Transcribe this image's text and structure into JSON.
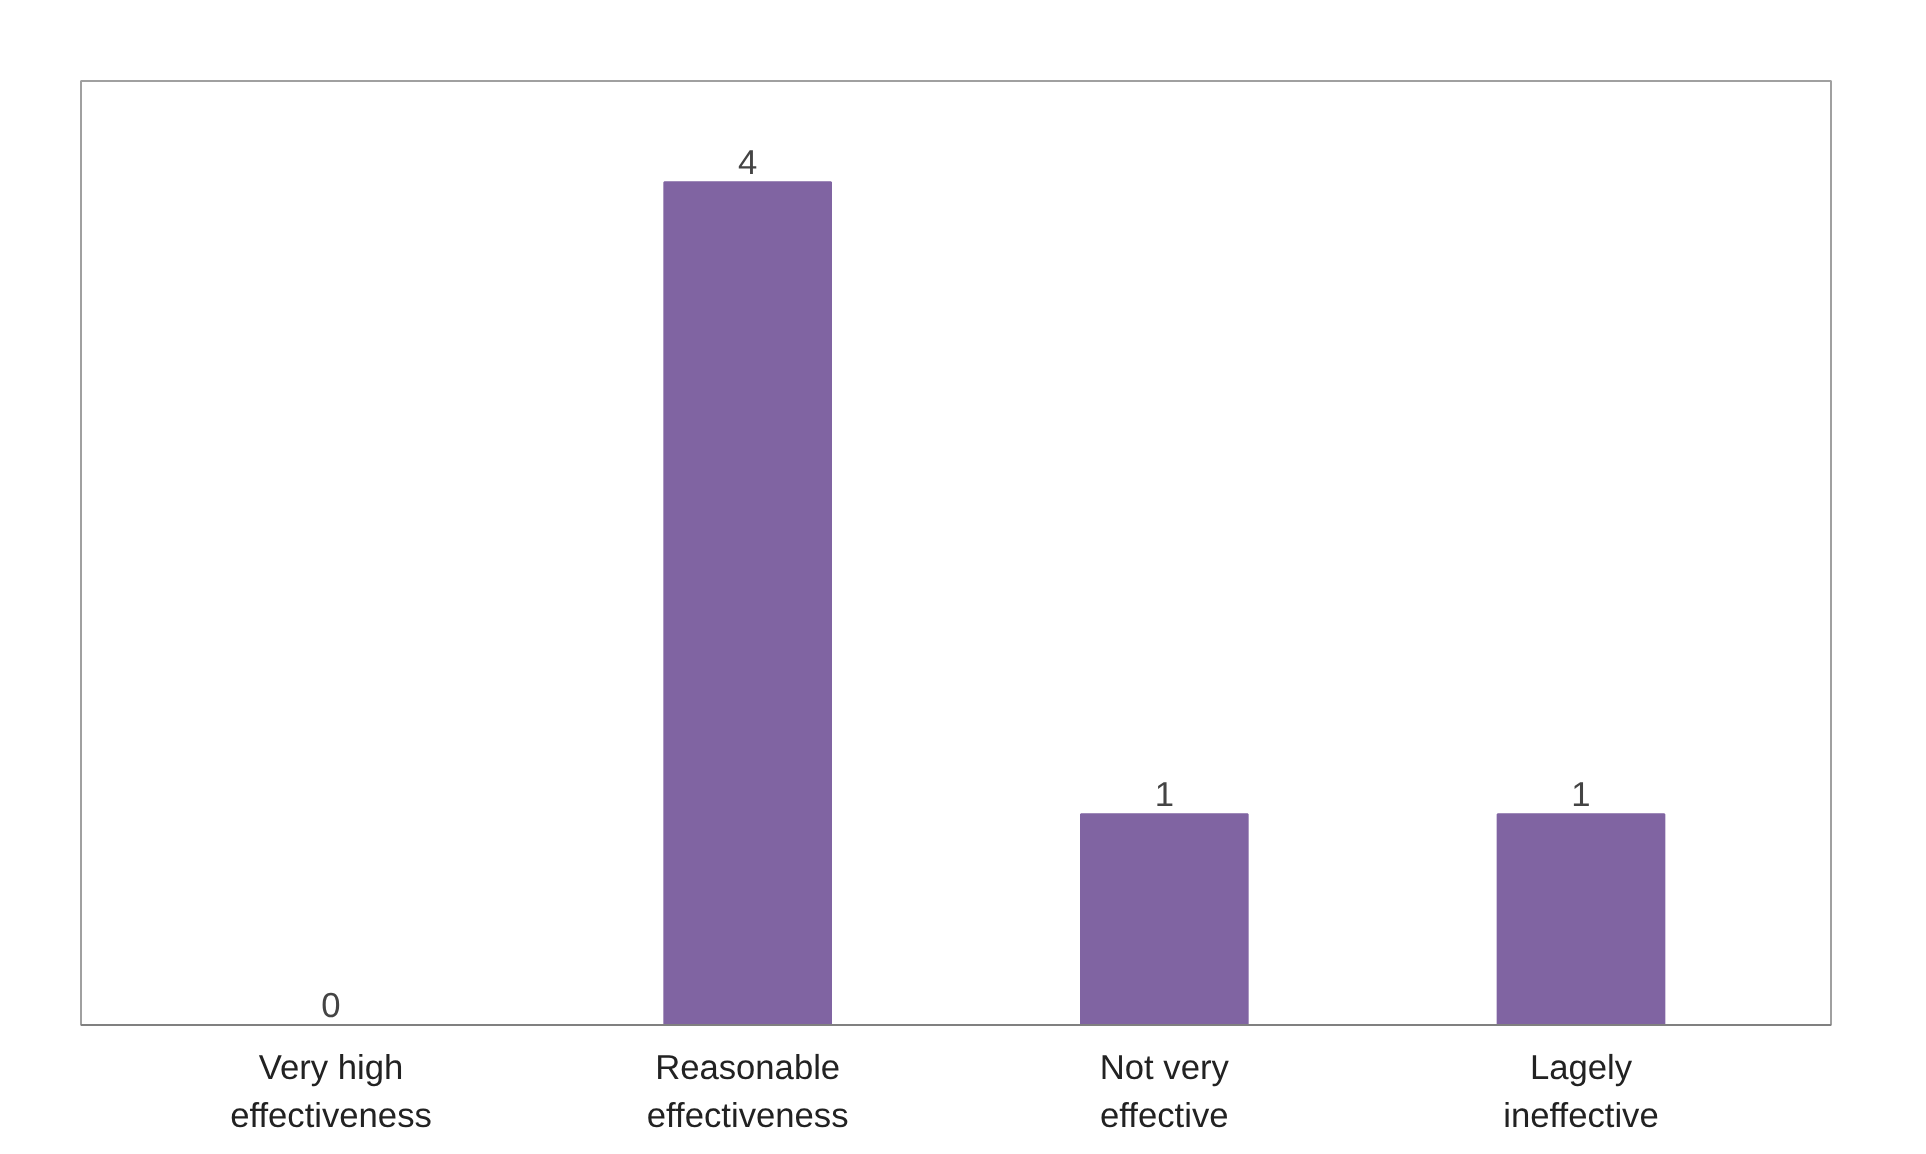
{
  "chart_data": {
    "type": "bar",
    "categories": [
      "Very high effectiveness",
      "Reasonable effectiveness",
      "Not very effective",
      "Lagely ineffective"
    ],
    "values": [
      0,
      4,
      1,
      1
    ],
    "color": "#8064a2",
    "data_labels": true
  }
}
